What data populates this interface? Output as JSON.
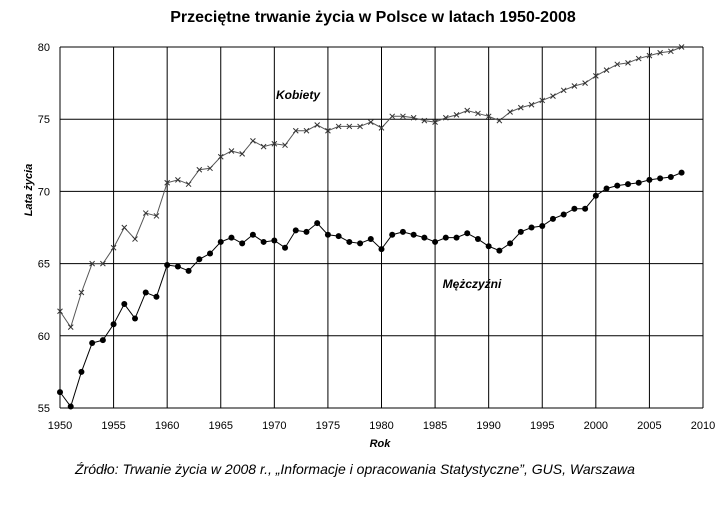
{
  "chart_data": {
    "type": "line",
    "title": "Przeciętne trwanie życia w Polsce w latach 1950-2008",
    "xlabel": "Rok",
    "ylabel": "Lata życia",
    "xlim": [
      1950,
      2010
    ],
    "ylim": [
      55,
      80
    ],
    "xticks": [
      "1950",
      "1955",
      "1960",
      "1965",
      "1970",
      "1975",
      "1980",
      "1985",
      "1990",
      "1995",
      "2000",
      "2005",
      "2010"
    ],
    "yticks": [
      "55",
      "60",
      "65",
      "70",
      "75",
      "80"
    ],
    "grid": true,
    "x": [
      1950,
      1951,
      1952,
      1953,
      1954,
      1955,
      1956,
      1957,
      1958,
      1959,
      1960,
      1961,
      1962,
      1963,
      1964,
      1965,
      1966,
      1967,
      1968,
      1969,
      1970,
      1971,
      1972,
      1973,
      1974,
      1975,
      1976,
      1977,
      1978,
      1979,
      1980,
      1981,
      1982,
      1983,
      1984,
      1985,
      1986,
      1987,
      1988,
      1989,
      1990,
      1991,
      1992,
      1993,
      1994,
      1995,
      1996,
      1997,
      1998,
      1999,
      2000,
      2001,
      2002,
      2003,
      2004,
      2005,
      2006,
      2007,
      2008
    ],
    "series": [
      {
        "name": "Kobiety",
        "marker": "x",
        "values": [
          61.7,
          60.6,
          63.0,
          65.0,
          65.0,
          66.1,
          67.5,
          66.7,
          68.5,
          68.3,
          70.6,
          70.8,
          70.5,
          71.5,
          71.6,
          72.4,
          72.8,
          72.6,
          73.5,
          73.1,
          73.3,
          73.2,
          74.2,
          74.2,
          74.6,
          74.2,
          74.5,
          74.5,
          74.5,
          74.8,
          74.4,
          75.2,
          75.2,
          75.1,
          74.9,
          74.8,
          75.1,
          75.3,
          75.6,
          75.4,
          75.2,
          74.9,
          75.5,
          75.8,
          76.0,
          76.3,
          76.6,
          77.0,
          77.3,
          77.5,
          78.0,
          78.4,
          78.8,
          78.9,
          79.2,
          79.4,
          79.6,
          79.7,
          80.0
        ]
      },
      {
        "name": "Mężczyźni",
        "marker": "dot",
        "values": [
          56.1,
          55.1,
          57.5,
          59.5,
          59.7,
          60.8,
          62.2,
          61.2,
          63.0,
          62.7,
          64.9,
          64.8,
          64.5,
          65.3,
          65.7,
          66.5,
          66.8,
          66.4,
          67.0,
          66.5,
          66.6,
          66.1,
          67.3,
          67.2,
          67.8,
          67.0,
          66.9,
          66.5,
          66.4,
          66.7,
          66.0,
          67.0,
          67.2,
          67.0,
          66.8,
          66.5,
          66.8,
          66.8,
          67.1,
          66.7,
          66.2,
          65.9,
          66.4,
          67.2,
          67.5,
          67.6,
          68.1,
          68.4,
          68.8,
          68.8,
          69.7,
          70.2,
          70.4,
          70.5,
          70.6,
          70.8,
          70.9,
          71.0,
          71.3
        ]
      }
    ]
  },
  "labels": {
    "kobiety": "Kobiety",
    "mezczyzni": "Mężczyźni"
  },
  "source": "Źródło: Trwanie życia w 2008 r., „Informacje i opracowania Statystyczne”, GUS, Warszawa"
}
